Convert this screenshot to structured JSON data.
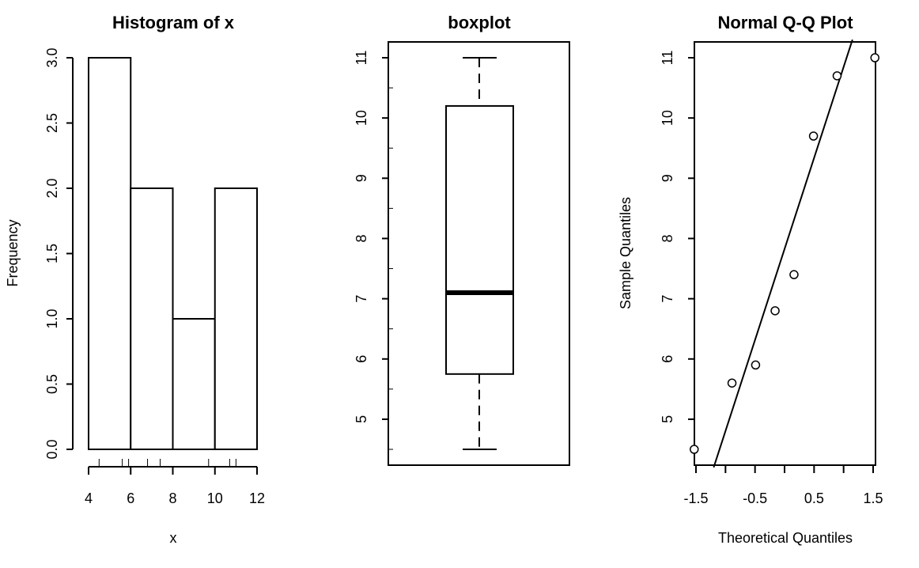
{
  "chart_data": [
    {
      "type": "bar",
      "subtype": "histogram",
      "title": "Histogram of x",
      "xlabel": "x",
      "ylabel": "Frequency",
      "bins": [
        [
          4,
          6
        ],
        [
          6,
          8
        ],
        [
          8,
          10
        ],
        [
          10,
          12
        ]
      ],
      "values": [
        3,
        2,
        1,
        2
      ],
      "rug": [
        4.5,
        5.6,
        5.9,
        6.8,
        7.4,
        9.7,
        10.7,
        11
      ],
      "xticks": [
        "4",
        "6",
        "8",
        "10",
        "12"
      ],
      "yticks": [
        "0.0",
        "0.5",
        "1.0",
        "1.5",
        "2.0",
        "2.5",
        "3.0"
      ],
      "xlim": [
        4,
        12
      ],
      "ylim": [
        0,
        3
      ]
    },
    {
      "type": "boxplot",
      "title": "boxplot",
      "stats": {
        "min": 4.5,
        "q1": 5.75,
        "median": 7.1,
        "q3": 10.2,
        "max": 11
      },
      "yticks": [
        "5",
        "6",
        "7",
        "8",
        "9",
        "10",
        "11"
      ],
      "ylim": [
        4.5,
        11
      ]
    },
    {
      "type": "scatter",
      "subtype": "qqplot",
      "title": "Normal Q-Q Plot",
      "xlabel": "Theoretical Quantiles",
      "ylabel": "Sample Quantiles",
      "x": [
        -1.53,
        -0.89,
        -0.49,
        -0.16,
        0.16,
        0.49,
        0.89,
        1.53
      ],
      "y": [
        4.5,
        5.6,
        5.9,
        6.8,
        7.4,
        9.7,
        10.7,
        11
      ],
      "qq_line": [
        [
          -1.2,
          4.2
        ],
        [
          1.15,
          11.3
        ]
      ],
      "xticks": [
        "-1.5",
        "-0.5",
        "0.5",
        "1.5"
      ],
      "yticks": [
        "5",
        "6",
        "7",
        "8",
        "9",
        "10",
        "11"
      ],
      "xlim": [
        -1.53,
        1.53
      ],
      "ylim": [
        4.5,
        11
      ]
    }
  ]
}
